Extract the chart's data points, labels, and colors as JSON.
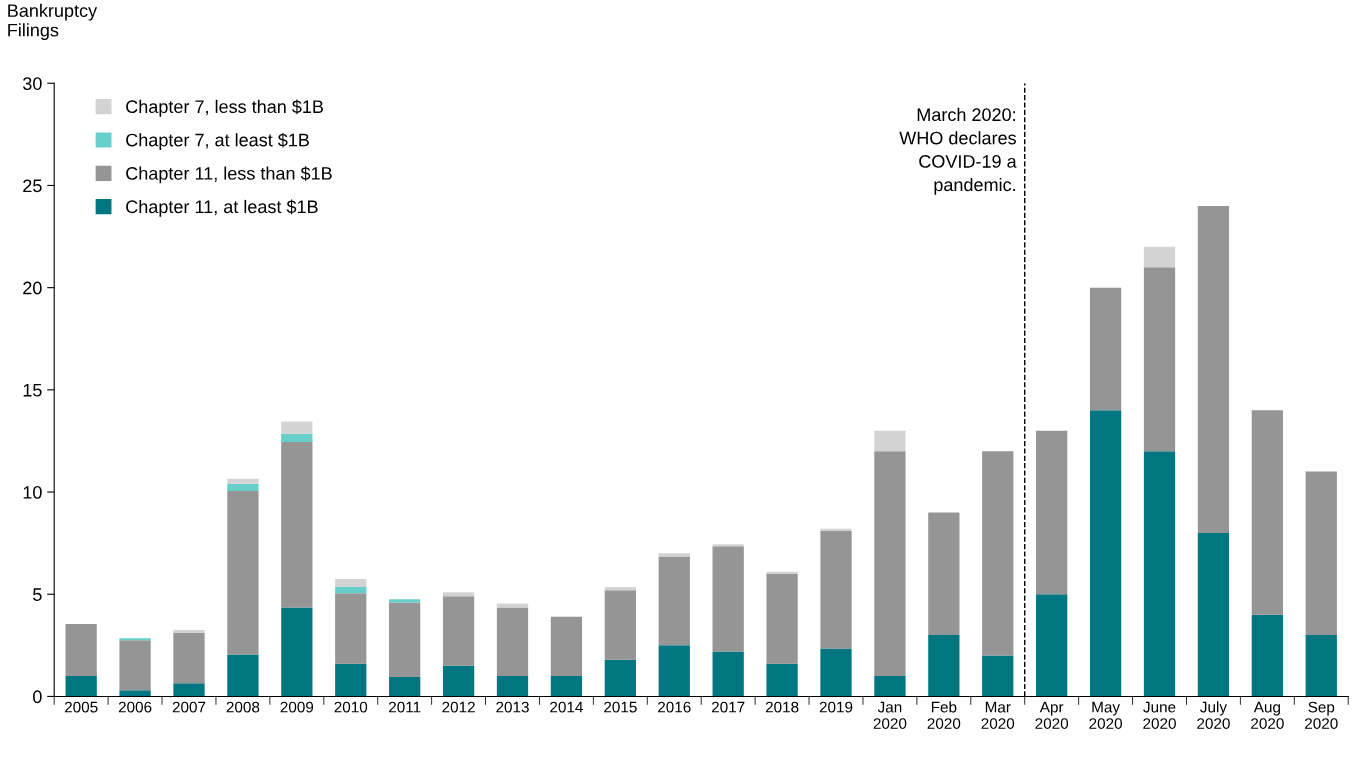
{
  "chart_data": {
    "type": "bar",
    "stacked": true,
    "ylabel": "Bankruptcy\nFilings",
    "categories": [
      "2005",
      "2006",
      "2007",
      "2008",
      "2009",
      "2010",
      "2011",
      "2012",
      "2013",
      "2014",
      "2015",
      "2016",
      "2017",
      "2018",
      "2019",
      "Jan\n2020",
      "Feb\n2020",
      "Mar\n2020",
      "Apr\n2020",
      "May\n2020",
      "June\n2020",
      "July\n2020",
      "Aug\n2020",
      "Sep\n2020"
    ],
    "series": [
      {
        "name": "Chapter 11, at least $1B",
        "color": "#007681",
        "values": [
          1.0,
          0.3,
          0.65,
          2.05,
          4.35,
          1.6,
          0.95,
          1.5,
          1.0,
          1.0,
          1.8,
          2.5,
          2.2,
          1.6,
          2.35,
          1,
          3,
          2,
          5,
          14,
          12,
          8,
          4,
          3
        ]
      },
      {
        "name": "Chapter 11, less than $1B",
        "color": "#959595",
        "values": [
          2.55,
          2.45,
          2.45,
          8.0,
          8.1,
          3.45,
          3.65,
          3.4,
          3.35,
          2.9,
          3.4,
          4.35,
          5.15,
          4.4,
          5.75,
          11,
          6,
          10,
          8,
          6,
          9,
          16,
          10,
          8
        ]
      },
      {
        "name": "Chapter 7, at least $1B",
        "color": "#66cfc9",
        "values": [
          null,
          0.1,
          null,
          0.35,
          0.4,
          0.3,
          0.15,
          null,
          null,
          null,
          null,
          null,
          null,
          null,
          null,
          null,
          null,
          null,
          null,
          null,
          null,
          null,
          null,
          null
        ]
      },
      {
        "name": "Chapter 7, less than $1B",
        "color": "#d3d3d3",
        "values": [
          null,
          null,
          0.15,
          0.25,
          0.6,
          0.4,
          null,
          0.2,
          0.2,
          null,
          0.15,
          0.15,
          0.1,
          0.1,
          0.1,
          1,
          null,
          null,
          null,
          null,
          1,
          null,
          null,
          null
        ]
      }
    ],
    "ylim": [
      0,
      30
    ],
    "yticks": [
      0,
      5,
      10,
      15,
      20,
      25,
      30
    ],
    "grid": false,
    "legend": "top left",
    "annotations": [
      "March 2020:\nWHO declares\nCOVID-19 a\npandemic."
    ]
  }
}
